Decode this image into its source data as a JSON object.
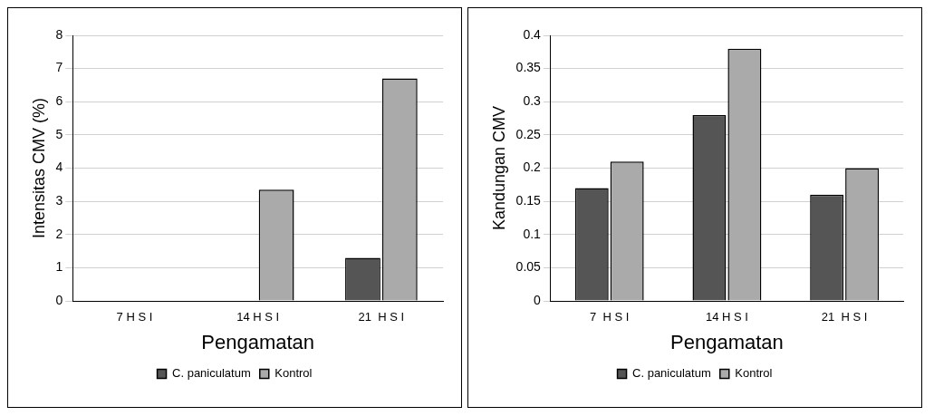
{
  "chart_data": [
    {
      "type": "bar",
      "xlabel": "Pengamatan",
      "ylabel": "Intensitas CMV (%)",
      "categories": [
        "7 H S I",
        "14 H S I",
        "21  H S I"
      ],
      "series": [
        {
          "name": "C. paniculatum",
          "color": "#555555",
          "values": [
            0,
            0,
            1.3
          ]
        },
        {
          "name": "Kontrol",
          "color": "#aaaaaa",
          "values": [
            0,
            3.35,
            6.7
          ]
        }
      ],
      "ylim": [
        0,
        8
      ],
      "yticks": [
        0,
        1,
        2,
        3,
        4,
        5,
        6,
        7,
        8
      ],
      "grid": "y",
      "legend": "bottom"
    },
    {
      "type": "bar",
      "xlabel": "Pengamatan",
      "ylabel": "Kandungan CMV",
      "categories": [
        "7  H S I",
        "14 H S I",
        "21  H S I"
      ],
      "series": [
        {
          "name": "C. paniculatum",
          "color": "#555555",
          "values": [
            0.17,
            0.28,
            0.16
          ]
        },
        {
          "name": "Kontrol",
          "color": "#aaaaaa",
          "values": [
            0.21,
            0.38,
            0.2
          ]
        }
      ],
      "ylim": [
        0,
        0.4
      ],
      "yticks": [
        0,
        0.05,
        0.1,
        0.15,
        0.2,
        0.25,
        0.3,
        0.35,
        0.4
      ],
      "grid": "y",
      "legend": "bottom"
    }
  ]
}
